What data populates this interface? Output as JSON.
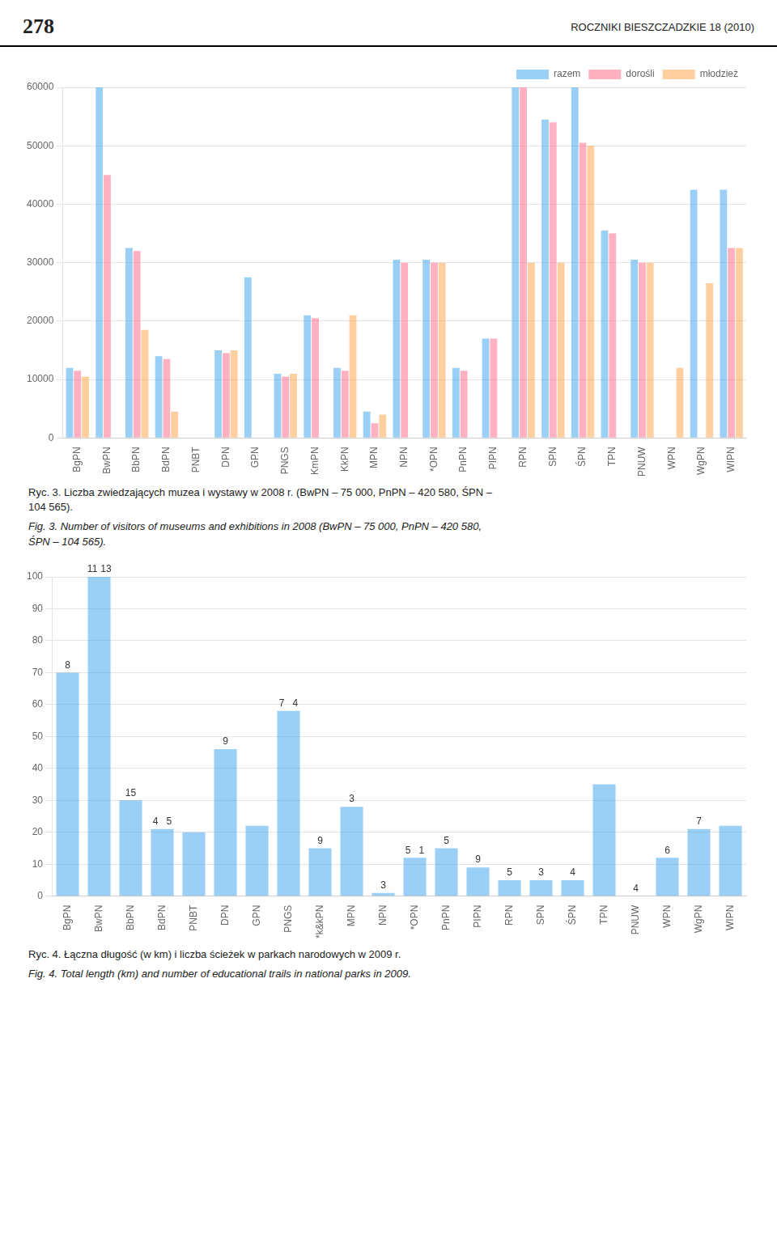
{
  "header_left": "278",
  "header_right": "ROCZNIKI BIESZCZADZKIE 18 (2010)",
  "chart_data": [
    {
      "type": "bar",
      "categories": [
        "BgPN",
        "BwPN",
        "BbPN",
        "BdPN",
        "PNBT",
        "DPN",
        "GPN",
        "PNGS",
        "KmPN",
        "KkPN",
        "MPN",
        "NPN",
        "*OPN",
        "PnPN",
        "PIPN",
        "RPN",
        "SPN",
        "ŚPN",
        "TPN",
        "PNUW",
        "WPN",
        "WgPN",
        "WIPN"
      ],
      "series": [
        {
          "name": "razem",
          "values": [
            12000,
            60000,
            32500,
            14000,
            0,
            15000,
            27500,
            11000,
            21000,
            12000,
            4500,
            30500,
            30500,
            12000,
            17000,
            60000,
            54500,
            60000,
            35500,
            30500,
            0,
            42500,
            42500
          ]
        },
        {
          "name": "dorośli",
          "values": [
            11500,
            45000,
            32000,
            13500,
            0,
            14500,
            0,
            10500,
            20500,
            11500,
            2500,
            30000,
            30000,
            11500,
            17000,
            60000,
            54000,
            50500,
            35000,
            30000,
            0,
            0,
            32500
          ]
        },
        {
          "name": "młodzież",
          "values": [
            10500,
            0,
            18500,
            4500,
            0,
            15000,
            0,
            11000,
            0,
            21000,
            4000,
            0,
            30000,
            0,
            0,
            30000,
            30000,
            50000,
            0,
            30000,
            12000,
            26500,
            32500
          ]
        }
      ],
      "ylim": [
        0,
        60000
      ],
      "yticks": [
        0,
        10000,
        20000,
        30000,
        40000,
        50000,
        60000
      ],
      "grid": true,
      "legend": "upper right",
      "caption": [
        "Ryc. 3. Liczba zwiedzających muzea i wystawy w 2008 r. (BwPN – 75 000, PnPN – 420 580, ŚPN –\n104 565).",
        "Fig. 3. Number of visitors of museums and exhibitions in 2008 (BwPN – 75 000, PnPN – 420 580,\nŚPN – 104 565)."
      ]
    },
    {
      "type": "bar",
      "categories": [
        "BgPN",
        "BwPN",
        "BbPN",
        "BdPN",
        "PNBT",
        "DPN",
        "GPN",
        "PNGS",
        "*k&kPN",
        "MPN",
        "NPN",
        "*OPN",
        "PnPN",
        "PIPN",
        "RPN",
        "SPN",
        "ŚPN",
        "TPN",
        "PNUW",
        "WPN",
        "WgPN",
        "WIPN"
      ],
      "values": [
        70,
        100,
        30,
        21,
        20,
        46,
        22,
        58,
        15,
        28,
        1,
        12,
        15,
        9,
        5,
        5,
        5,
        35,
        0,
        12,
        21,
        22
      ],
      "annotations": [
        {
          "bar": 0,
          "text": "8"
        },
        {
          "bar": 1,
          "text": "11"
        },
        {
          "bar": 1,
          "text": "13"
        },
        {
          "bar": 2,
          "text": "15"
        },
        {
          "bar": 3,
          "text": "4"
        },
        {
          "bar": 3,
          "text": "5"
        },
        {
          "bar": 5,
          "text": "9"
        },
        {
          "bar": 7,
          "text": "7"
        },
        {
          "bar": 7,
          "text": "4"
        },
        {
          "bar": 8,
          "text": "9"
        },
        {
          "bar": 9,
          "text": "3"
        },
        {
          "bar": 10,
          "text": "3"
        },
        {
          "bar": 11,
          "text": "5"
        },
        {
          "bar": 11,
          "text": "1"
        },
        {
          "bar": 12,
          "text": "5"
        },
        {
          "bar": 13,
          "text": "9"
        },
        {
          "bar": 14,
          "text": "5"
        },
        {
          "bar": 15,
          "text": "3"
        },
        {
          "bar": 16,
          "text": "4"
        },
        {
          "bar": 18,
          "text": "4"
        },
        {
          "bar": 19,
          "text": "6"
        },
        {
          "bar": 20,
          "text": "7"
        }
      ],
      "ylim": [
        0,
        100
      ],
      "yticks": [
        0,
        10,
        20,
        30,
        40,
        50,
        60,
        70,
        80,
        90,
        100
      ],
      "grid": true,
      "caption": [
        "Ryc. 4. Łączna długość (w km) i liczba ścieżek w parkach narodowych w 2009 r.",
        "Fig. 4. Total length (km) and number of educational trails in national parks in 2009."
      ]
    }
  ]
}
